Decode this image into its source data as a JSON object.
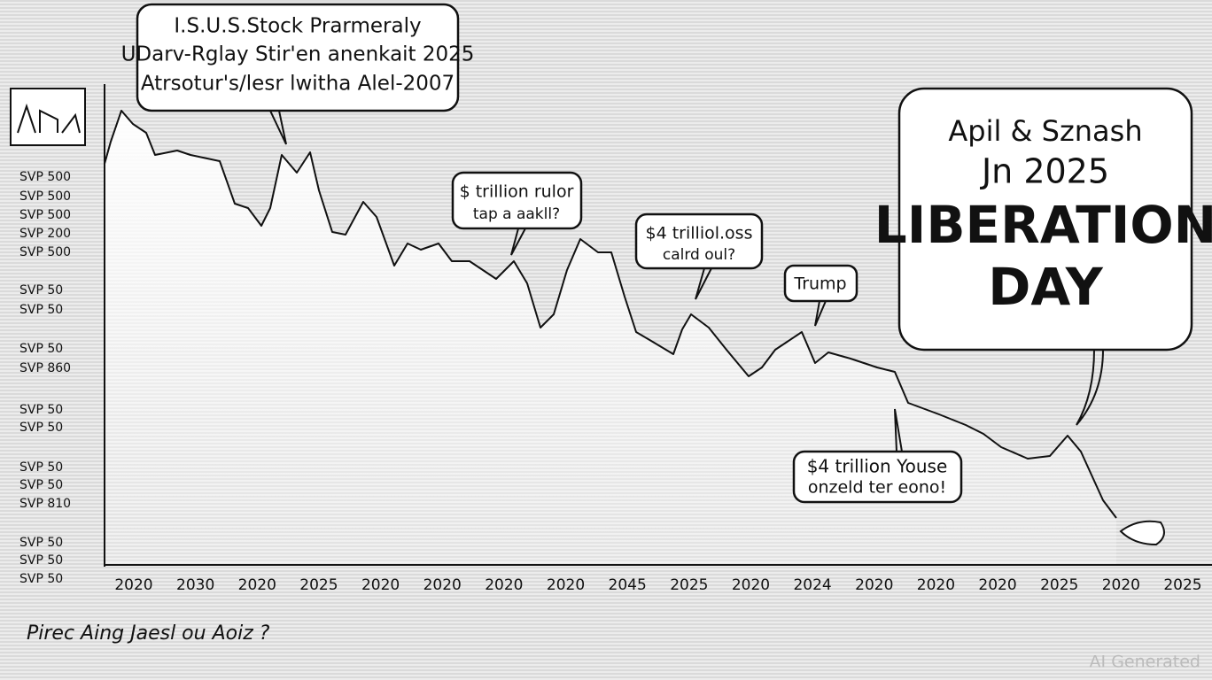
{
  "title_lines": [
    "I.S.U.S.Stock Prarmeraly",
    "UDarv-Rglay Stir'en anenkait 2025",
    "Atrsotur's/lesr lwitha Alel-2007"
  ],
  "callouts": [
    {
      "lines": [
        "$ trillion rulor",
        "tap a aakll?"
      ]
    },
    {
      "lines": [
        "$4 trilliol.oss",
        "calrd oul?"
      ]
    },
    {
      "lines": [
        "Trump"
      ]
    },
    {
      "lines": [
        "Apil & Sznash",
        "Jn 2025",
        "LIBERATION",
        "DAY"
      ]
    },
    {
      "lines": [
        "$4 trillion Youse",
        "onzeld ter eono!"
      ]
    }
  ],
  "y_labels": [
    "SVP 500",
    "SVP 500",
    "SVP 500",
    "SVP 200",
    "SVP 500",
    "SVP 50",
    "SVP 50",
    "SVP 50",
    "SVP 860",
    "SVP 50",
    "SVP 50",
    "SVP 50",
    "SVP 50",
    "SVP 810",
    "SVP 50",
    "SVP 50",
    "SVP 50"
  ],
  "x_labels": [
    "2020",
    "2030",
    "2020",
    "2025",
    "2020",
    "2020",
    "2020",
    "2020",
    "2045",
    "2025",
    "2020",
    "2024",
    "2020",
    "2020",
    "2020",
    "2025",
    "2020",
    "2025"
  ],
  "footer": "Pirec Aing Jaesl ou Aoiz ?",
  "watermark": "AI Generated"
}
